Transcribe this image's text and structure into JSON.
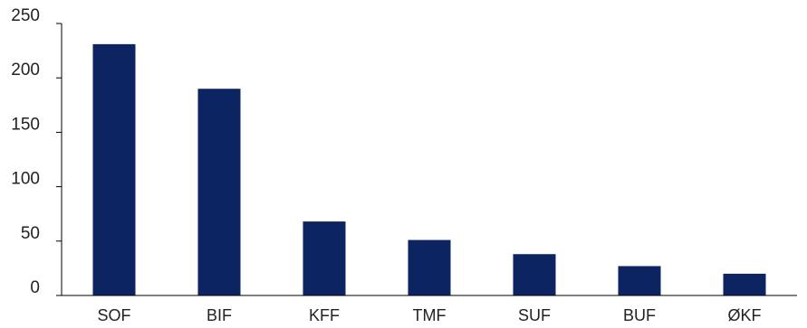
{
  "chart_data": {
    "type": "bar",
    "categories": [
      "SOF",
      "BIF",
      "KFF",
      "TMF",
      "SUF",
      "BUF",
      "ØKF"
    ],
    "values": [
      231,
      190,
      68,
      51,
      38,
      27,
      20
    ],
    "title": "",
    "xlabel": "",
    "ylabel": "",
    "ylim": [
      0,
      250
    ],
    "yticks": [
      0,
      50,
      100,
      150,
      200,
      250
    ],
    "grid": false,
    "legend": "none",
    "bar_color": "#0c2461"
  }
}
